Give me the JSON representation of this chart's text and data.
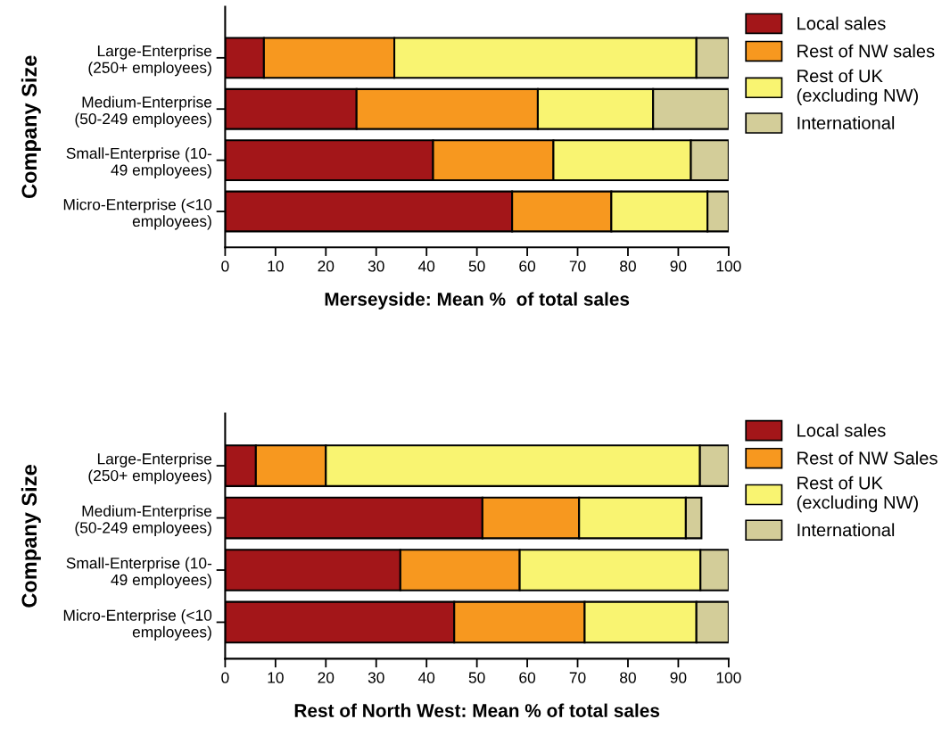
{
  "chart_data": [
    {
      "type": "bar",
      "orientation": "horizontal",
      "stacked": true,
      "xlabel": "Merseyside: Mean %  of total sales",
      "ylabel": "Company Size",
      "categories": [
        "Large-Enterprise\n(250+ employees)",
        "Medium-Enterprise\n(50-249 employees)",
        "Small-Enterprise (10-\n49 employees)",
        "Micro-Enterprise (<10\nemployees)"
      ],
      "series": [
        {
          "name": "Local sales",
          "color": "#a31619",
          "values": [
            7.7,
            26.1,
            41.3,
            57.0
          ]
        },
        {
          "name": "Rest of NW sales",
          "color": "#f7981f",
          "values": [
            25.9,
            36.0,
            23.9,
            19.7
          ]
        },
        {
          "name": "Rest of UK\n(excluding NW)",
          "color": "#f9f471",
          "values": [
            60.0,
            22.9,
            27.3,
            19.1
          ]
        },
        {
          "name": "International",
          "color": "#d3cd99",
          "values": [
            6.4,
            15.0,
            7.5,
            4.2
          ]
        }
      ],
      "xlim": [
        0,
        100
      ],
      "xticks": [
        0,
        10,
        20,
        30,
        40,
        50,
        60,
        70,
        80,
        90,
        100
      ],
      "legend": "top right",
      "grid": false
    },
    {
      "type": "bar",
      "orientation": "horizontal",
      "stacked": true,
      "xlabel": "Rest of North West: Mean % of total sales",
      "ylabel": "Company Size",
      "categories": [
        "Large-Enterprise\n(250+ employees)",
        "Medium-Enterprise\n(50-249 employees)",
        "Small-Enterprise (10-\n49 employees)",
        "Micro-Enterprise (<10\nemployees)"
      ],
      "series": [
        {
          "name": "Local sales",
          "color": "#a31619",
          "values": [
            6.1,
            51.1,
            34.8,
            45.5
          ]
        },
        {
          "name": "Rest of NW Sales",
          "color": "#f7981f",
          "values": [
            13.9,
            19.2,
            23.7,
            25.9
          ]
        },
        {
          "name": "Rest of UK\n(excluding NW)",
          "color": "#f9f471",
          "values": [
            74.3,
            21.2,
            35.9,
            22.2
          ]
        },
        {
          "name": "International",
          "color": "#d3cd99",
          "values": [
            5.7,
            3.1,
            5.6,
            6.4
          ]
        }
      ],
      "xlim": [
        0,
        100
      ],
      "xticks": [
        0,
        10,
        20,
        30,
        40,
        50,
        60,
        70,
        80,
        90,
        100
      ],
      "legend": "top right",
      "grid": false
    }
  ]
}
